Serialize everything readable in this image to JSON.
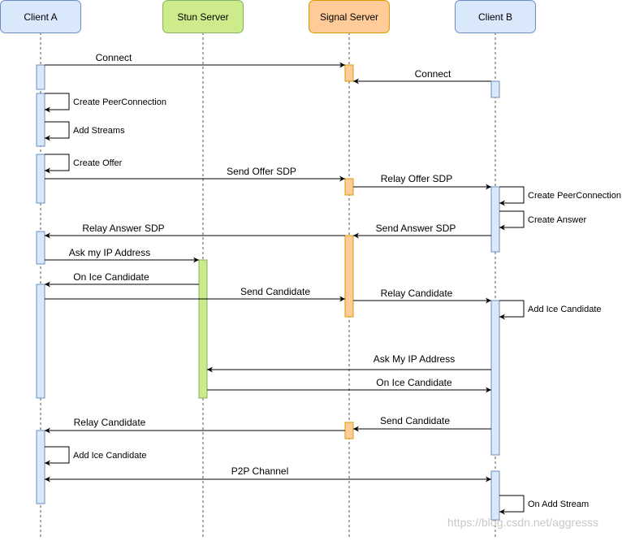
{
  "participants": [
    {
      "label": "Client A"
    },
    {
      "label": "Stun Server"
    },
    {
      "label": "Signal Server"
    },
    {
      "label": "Client B"
    }
  ],
  "messages": [
    {
      "label": "Connect"
    },
    {
      "label": "Connect"
    },
    {
      "label": "Create PeerConnection"
    },
    {
      "label": "Add Streams"
    },
    {
      "label": "Create Offer"
    },
    {
      "label": "Send Offer SDP"
    },
    {
      "label": "Relay Offer SDP"
    },
    {
      "label": "Create PeerConnection"
    },
    {
      "label": "Create Answer"
    },
    {
      "label": "Send Answer SDP"
    },
    {
      "label": "Relay Answer SDP"
    },
    {
      "label": "Ask my IP Address"
    },
    {
      "label": "On Ice Candidate"
    },
    {
      "label": "Send Candidate"
    },
    {
      "label": "Relay Candidate"
    },
    {
      "label": "Add Ice Candidate"
    },
    {
      "label": "Ask My IP Address"
    },
    {
      "label": "On Ice Candidate"
    },
    {
      "label": "Send Candidate"
    },
    {
      "label": "Relay Candidate"
    },
    {
      "label": "Add Ice Candidate"
    },
    {
      "label": "P2P Channel"
    },
    {
      "label": "On Add Stream"
    }
  ],
  "watermark": "https://blog.csdn.net/aggresss"
}
